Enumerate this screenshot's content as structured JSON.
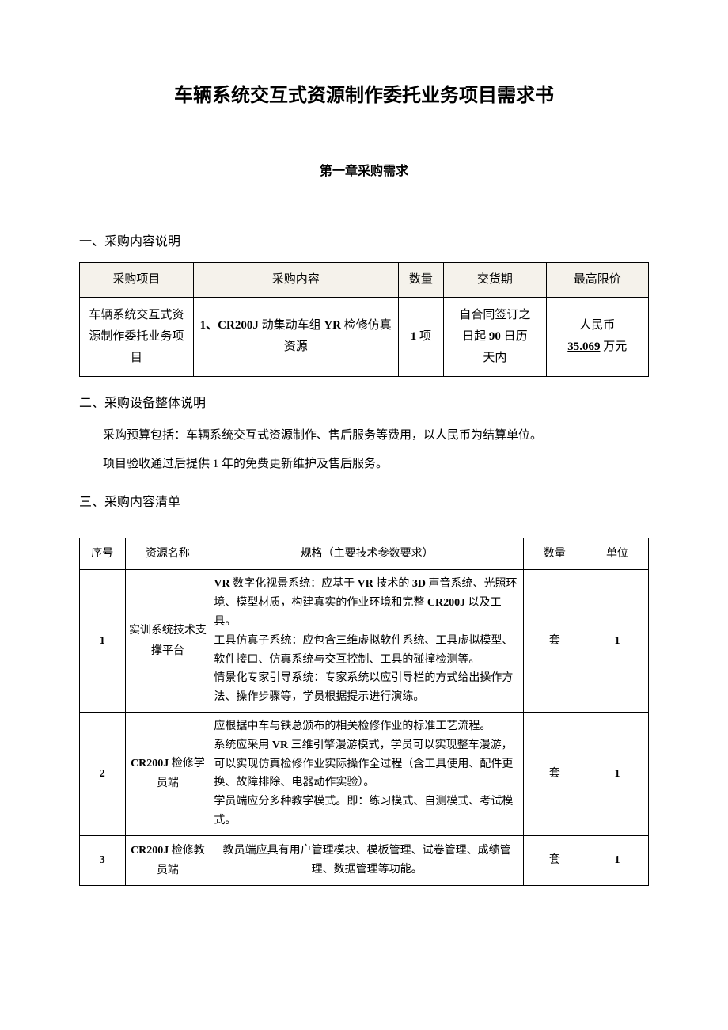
{
  "document": {
    "title": "车辆系统交互式资源制作委托业务项目需求书",
    "chapter_title": "第一章采购需求"
  },
  "section1": {
    "heading": "一、采购内容说明",
    "table": {
      "headers": {
        "col1": "采购项目",
        "col2": "采购内容",
        "col3": "数量",
        "col4": "交货期",
        "col5": "最高限价"
      },
      "row": {
        "project": "车辆系统交互式资源制作委托业务项目",
        "content_prefix": "1、CR200J",
        "content_mid": " 动集动车组 ",
        "content_yr": "YR",
        "content_suffix": " 检修仿真资源",
        "quantity_num": "1",
        "quantity_unit": " 项",
        "delivery_l1": "自合同签订之",
        "delivery_l2_pre": "日起 ",
        "delivery_l2_num": "90",
        "delivery_l2_post": " 日历",
        "delivery_l3": "天内",
        "price_l1": "人民币",
        "price_l2_num": "35.069",
        "price_l2_unit": " 万元"
      }
    }
  },
  "section2": {
    "heading": "二、采购设备整体说明",
    "para1": "采购预算包括：车辆系统交互式资源制作、售后服务等费用，以人民币为结算单位。",
    "para2_pre": "项目验收通过后提供 ",
    "para2_num": "1",
    "para2_post": " 年的免费更新维护及售后服务。"
  },
  "section3": {
    "heading": "三、采购内容清单",
    "table": {
      "headers": {
        "col1": "序号",
        "col2": "资源名称",
        "col3": "规格（主要技术参数要求）",
        "col4": "数量",
        "col5": "单位"
      },
      "rows": [
        {
          "seq": "1",
          "name": "实训系统技术支撑平台",
          "spec_parts": {
            "p1_a": "VR",
            "p1_b": " 数字化视景系统：应基于 ",
            "p1_c": "VR",
            "p1_d": " 技术的 ",
            "p1_e": "3D",
            "p1_f": " 声音系统、光照环境、模型材质，构建真实的作业环境和完整 ",
            "p1_g": "CR200J",
            "p1_h": " 以及工具。",
            "p2": "工具仿真子系统：应包含三维虚拟软件系统、工具虚拟模型、软件接口、仿真系统与交互控制、工具的碰撞检测等。",
            "p3": "情景化专家引导系统：专家系统以应引导栏的方式给出操作方法、操作步骤等，学员根据提示进行演练。"
          },
          "qty": "套",
          "unit": "1"
        },
        {
          "seq": "2",
          "name_l1": "CR200J",
          "name_l2": " 检修学员端",
          "spec_parts": {
            "p1": "应根据中车与铁总颁布的相关检修作业的标准工艺流程。",
            "p2_a": "系统应采用 ",
            "p2_b": "VR",
            "p2_c": " 三维引擎漫游模式，学员可以实现整车漫游，可以实现仿真检修作业实际操作全过程（含工具使用、配件更换、故障排除、电器动作实验）。",
            "p3": "学员端应分多种教学模式。即：练习模式、自测模式、考试模式。"
          },
          "qty": "套",
          "unit": "1"
        },
        {
          "seq": "3",
          "name_l1": "CR200J",
          "name_l2": " 检修教员端",
          "spec": "教员端应具有用户管理模块、模板管理、试卷管理、成绩管理、数据管理等功能。",
          "qty": "套",
          "unit": "1"
        }
      ]
    }
  },
  "colors": {
    "header_bg": "#f5f2eb",
    "border": "#000000",
    "text": "#000000",
    "background": "#ffffff"
  }
}
